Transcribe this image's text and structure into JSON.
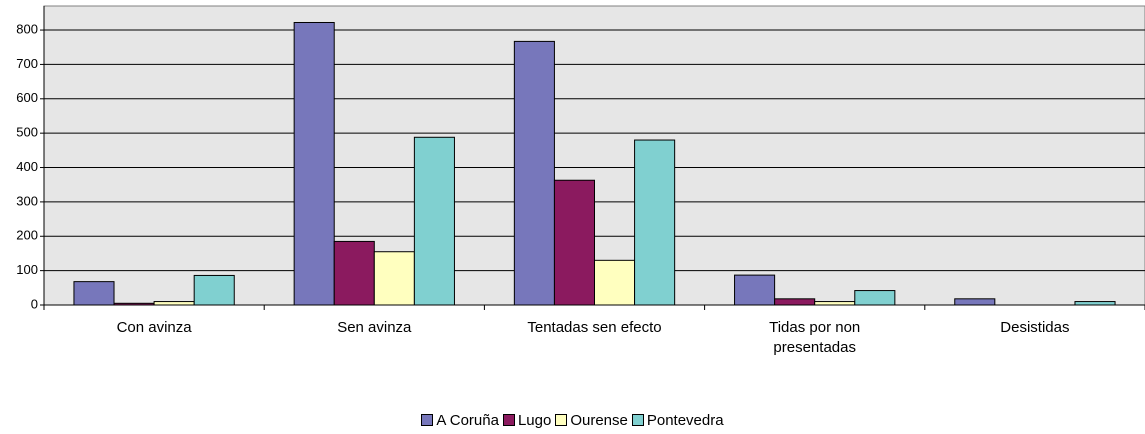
{
  "chart_data": {
    "type": "bar",
    "categories": [
      "Con avinza",
      "Sen avinza",
      "Tentadas sen efecto",
      "Tidas por non presentadas",
      "Desistidas"
    ],
    "series": [
      {
        "name": "A Coruña",
        "color": "#7777bb",
        "values": [
          68,
          822,
          767,
          87,
          18
        ]
      },
      {
        "name": "Lugo",
        "color": "#8b1a5f",
        "values": [
          5,
          185,
          363,
          18,
          0
        ]
      },
      {
        "name": "Ourense",
        "color": "#ffffbf",
        "values": [
          10,
          155,
          130,
          10,
          0
        ]
      },
      {
        "name": "Pontevedra",
        "color": "#80d0d0",
        "values": [
          86,
          488,
          480,
          42,
          10
        ]
      }
    ],
    "ylim": [
      0,
      870
    ],
    "yticks": [
      0,
      100,
      200,
      300,
      400,
      500,
      600,
      700,
      800
    ],
    "grid": true,
    "legend": "bottom"
  }
}
